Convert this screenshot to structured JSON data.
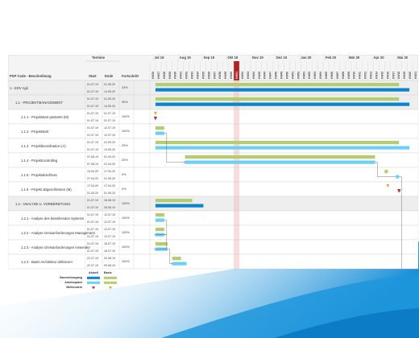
{
  "header": {
    "termine": "Termine",
    "col_psp": "PSP Code - Beschreibung",
    "col_start": "Start",
    "col_ende": "Ende",
    "col_fortschritt": "Fortschritt"
  },
  "months": [
    "Jul 19",
    "Aug 19",
    "Sep 19",
    "Okt 19",
    "Nov 19",
    "Dez 19",
    "Jan 20",
    "Feb 20",
    "Mär 20",
    "Apr 20",
    "Mai 20"
  ],
  "weeks": [
    "KW26",
    "KW27",
    "KW28",
    "KW29",
    "KW30",
    "KW31",
    "KW32",
    "KW33",
    "KW34",
    "KW35",
    "KW36",
    "KW37",
    "KW38",
    "KW39",
    "KW40",
    "KW41",
    "KW42",
    "KW43",
    "KW44",
    "KW45",
    "KW46",
    "KW47",
    "KW48",
    "KW49",
    "KW50",
    "KW51",
    "KW52",
    "KW01",
    "KW02",
    "KW03",
    "KW04",
    "KW05",
    "KW06",
    "KW07",
    "KW08",
    "KW09",
    "KW10",
    "KW11",
    "KW12",
    "KW13",
    "KW14",
    "KW15",
    "KW16",
    "KW17",
    "KW18",
    "KW19",
    "KW20",
    "KW21"
  ],
  "rows": [
    {
      "name": "1 - EDV Agil",
      "start": "01.07.19",
      "end": "01.05.20",
      "act_start": "01.07.19",
      "act_end": "14.05.20",
      "pct": "33%",
      "level": 0,
      "type": "summary"
    },
    {
      "name": "1.1 - PROJEKTMANAGEMENT",
      "start": "01.07.19",
      "end": "01.05.20",
      "act_start": "01.07.19",
      "act_end": "14.05.20",
      "pct": "30%",
      "level": 1,
      "type": "summary"
    },
    {
      "name": "1.1.1 - Projektstart gestartet (M)",
      "start": "01.07.19",
      "end": "01.07.19",
      "act_start": "01.07.19",
      "act_end": "01.07.19",
      "pct": "100%",
      "level": 2,
      "type": "milestone"
    },
    {
      "name": "1.1.2 - Projektstart",
      "start": "01.07.19",
      "end": "12.07.19",
      "act_start": "01.07.19",
      "act_end": "12.07.19",
      "pct": "100%",
      "level": 2,
      "type": "task"
    },
    {
      "name": "1.1.3 - Projektkoordination (A)",
      "start": "01.07.19",
      "end": "01.05.20",
      "act_start": "01.07.19",
      "act_end": "14.05.20",
      "pct": "25%",
      "level": 2,
      "type": "task"
    },
    {
      "name": "1.1.4 - Projektcontrolling",
      "start": "07.08.19",
      "end": "01.04.20",
      "act_start": "07.08.19",
      "act_end": "01.04.20",
      "pct": "20%",
      "level": 2,
      "type": "task"
    },
    {
      "name": "1.1.5 - Projektabschluss",
      "start": "13.04.20",
      "end": "17.04.20",
      "act_start": "27.04.20",
      "act_end": "01.05.20",
      "pct": "0%",
      "level": 2,
      "type": "task"
    },
    {
      "name": "1.1.6 - Projekt abgeschlossen (M)",
      "start": "17.04.20",
      "end": "17.04.20",
      "act_start": "01.05.20",
      "act_end": "01.05.20",
      "pct": "0%",
      "level": 2,
      "type": "milestone"
    },
    {
      "name": "1.2 - ANALYSE U. VORBEREITUNG",
      "start": "01.07.19",
      "end": "16.08.19",
      "act_start": "01.07.19",
      "act_end": "30.08.19",
      "pct": "100%",
      "level": 1,
      "type": "summary"
    },
    {
      "name": "1.2.1 - Analyse des bestehenden Systems",
      "start": "01.07.19",
      "end": "12.07.19",
      "act_start": "01.07.19",
      "act_end": "12.07.19",
      "pct": "100%",
      "level": 2,
      "type": "task"
    },
    {
      "name": "1.2.2 - Analyse Greisanforderungen Management",
      "start": "01.07.19",
      "end": "12.07.19",
      "act_start": "01.07.19",
      "act_end": "12.07.19",
      "pct": "100%",
      "level": 2,
      "type": "task"
    },
    {
      "name": "1.2.3 - Analyse Greisanforderungen Anwender",
      "start": "01.07.19",
      "end": "16.07.19",
      "act_start": "01.07.19",
      "act_end": "16.07.19",
      "pct": "100%",
      "level": 2,
      "type": "task"
    },
    {
      "name": "1.2.4 - Basis Architektur definieren",
      "start": "22.07.19",
      "end": "02.08.19",
      "act_start": "22.07.19",
      "act_end": "09.08.19",
      "pct": "100%",
      "level": 2,
      "type": "task"
    }
  ],
  "legend": {
    "col_aktuell": "Aktuell",
    "col_basis": "Basis",
    "summary": "Sammelvorgang",
    "task": "Arbeitspaket",
    "milestone": "Meilenstein"
  },
  "colors": {
    "baseline": "#b5cd6a",
    "actual_task": "#6ccff6",
    "actual_summary": "#0a84d0",
    "milestone": "#d62a2a",
    "today": "#f3b9b9",
    "today_header": "#b22222",
    "summary_row": "#eeeeee"
  }
}
